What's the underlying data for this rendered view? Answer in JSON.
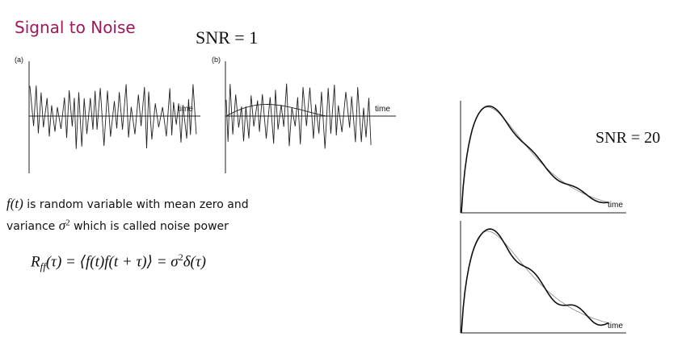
{
  "slide": {
    "title": "Signal to Noise",
    "snr_low": "SNR = 1",
    "snr_high": "SNR = 20"
  },
  "panels": {
    "a": {
      "tag": "(a)",
      "axis": "time"
    },
    "b": {
      "tag": "(b)",
      "axis": "time"
    },
    "c": {
      "axis": "time"
    },
    "d": {
      "axis": "time"
    }
  },
  "text": {
    "line1_fn": "f(t)",
    "line1_rest": " is random variable with mean zero and",
    "line2_pre": "variance ",
    "line2_sym": "σ",
    "line2_exp": "2",
    "line2_rest": " which is called noise power",
    "eq_lhs": "R",
    "eq_sub": "ff",
    "eq_arg": "(τ) = ⟨f(t)f(t + τ)⟩ = σ",
    "eq_exp": "2",
    "eq_tail": "δ(τ)"
  }
}
